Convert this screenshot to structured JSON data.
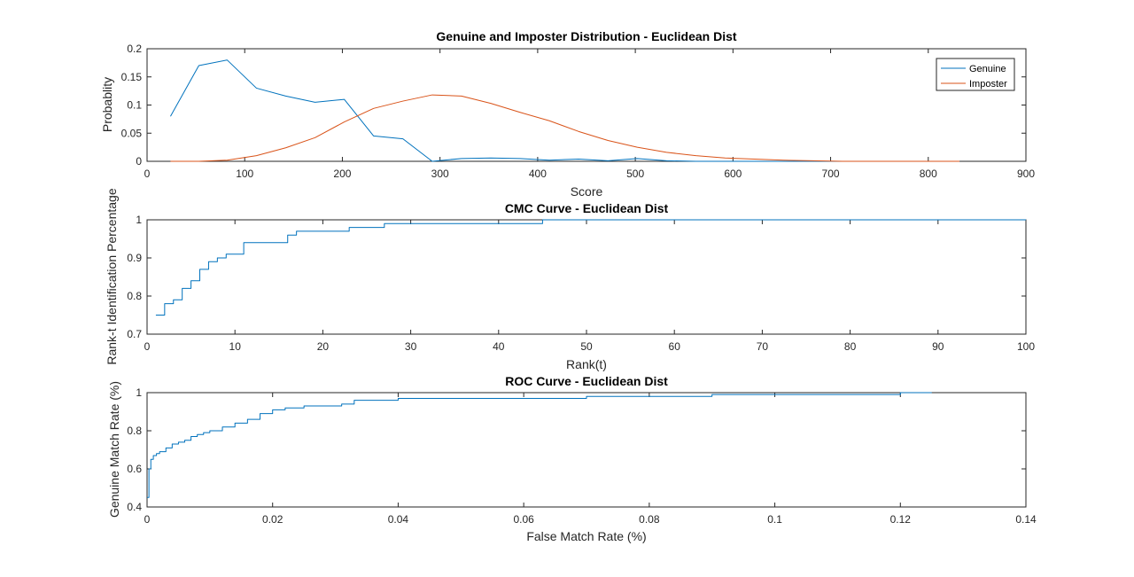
{
  "chart_data": [
    {
      "type": "line",
      "title": "Genuine and Imposter Distribution - Euclidean Dist",
      "xlabel": "Score",
      "ylabel": "Probablity",
      "xlim": [
        0,
        900
      ],
      "ylim": [
        0,
        0.2
      ],
      "xticks": [
        "0",
        "100",
        "200",
        "300",
        "400",
        "500",
        "600",
        "700",
        "800",
        "900"
      ],
      "yticks": [
        "0",
        "0.05",
        "0.1",
        "0.15",
        "0.2"
      ],
      "legend": "top-right",
      "series": [
        {
          "name": "Genuine",
          "color": "#0072BD",
          "x": [
            24,
            53,
            82,
            112,
            142,
            172,
            202,
            232,
            262,
            292,
            322,
            352,
            382,
            412,
            442,
            472,
            502,
            532,
            562,
            592,
            622,
            652,
            682,
            712,
            742,
            772,
            802,
            832
          ],
          "y": [
            0.08,
            0.17,
            0.18,
            0.13,
            0.116,
            0.105,
            0.11,
            0.045,
            0.04,
            0.0,
            0.005,
            0.006,
            0.005,
            0.002,
            0.004,
            0.001,
            0.005,
            0.001,
            0.0,
            0.0,
            0.0,
            0.0,
            0.0,
            0.0,
            0.0,
            0.0,
            0.0,
            0.0
          ]
        },
        {
          "name": "Imposter",
          "color": "#D95319",
          "x": [
            24,
            53,
            82,
            112,
            142,
            172,
            202,
            232,
            262,
            292,
            322,
            352,
            382,
            412,
            442,
            472,
            502,
            532,
            562,
            592,
            622,
            652,
            682,
            712,
            742,
            772,
            802,
            832
          ],
          "y": [
            0.0,
            0.0,
            0.002,
            0.01,
            0.024,
            0.042,
            0.07,
            0.094,
            0.107,
            0.118,
            0.116,
            0.103,
            0.087,
            0.072,
            0.053,
            0.037,
            0.025,
            0.016,
            0.01,
            0.006,
            0.004,
            0.002,
            0.001,
            0.0,
            0.0,
            0.0,
            0.0,
            0.0
          ]
        }
      ]
    },
    {
      "type": "line",
      "title": "CMC Curve - Euclidean Dist",
      "xlabel": "Rank(t)",
      "ylabel": "Rank-t Identification Percentage",
      "xlim": [
        0,
        100
      ],
      "ylim": [
        0.7,
        1
      ],
      "xticks": [
        "0",
        "10",
        "20",
        "30",
        "40",
        "50",
        "60",
        "70",
        "80",
        "90",
        "100"
      ],
      "yticks": [
        "0.7",
        "0.8",
        "0.9",
        "1"
      ],
      "series": [
        {
          "color": "#0072BD",
          "x": [
            1,
            2,
            3,
            4,
            5,
            6,
            7,
            8,
            9,
            10,
            11,
            12,
            13,
            14,
            15,
            16,
            17,
            18,
            19,
            20,
            21,
            22,
            23,
            24,
            25,
            26,
            27,
            28,
            30,
            35,
            40,
            44,
            45,
            50,
            60,
            70,
            80,
            90,
            100
          ],
          "y": [
            0.75,
            0.78,
            0.79,
            0.82,
            0.84,
            0.87,
            0.89,
            0.9,
            0.91,
            0.91,
            0.94,
            0.94,
            0.94,
            0.94,
            0.94,
            0.96,
            0.97,
            0.97,
            0.97,
            0.97,
            0.97,
            0.97,
            0.98,
            0.98,
            0.98,
            0.98,
            0.99,
            0.99,
            0.99,
            0.99,
            0.99,
            0.99,
            1.0,
            1.0,
            1.0,
            1.0,
            1.0,
            1.0,
            1.0
          ]
        }
      ]
    },
    {
      "type": "line",
      "title": "ROC Curve - Euclidean Dist",
      "xlabel": "False Match Rate (%)",
      "ylabel": "Genuine Match Rate (%)",
      "xlim": [
        0,
        0.14
      ],
      "ylim": [
        0.4,
        1
      ],
      "xticks": [
        "0",
        "0.02",
        "0.04",
        "0.06",
        "0.08",
        "0.1",
        "0.12",
        "0.14"
      ],
      "yticks": [
        "0.4",
        "0.6",
        "0.8",
        "1"
      ],
      "series": [
        {
          "color": "#0072BD",
          "x": [
            0,
            0.0003,
            0.0006,
            0.001,
            0.0015,
            0.002,
            0.003,
            0.004,
            0.005,
            0.006,
            0.007,
            0.008,
            0.009,
            0.01,
            0.012,
            0.014,
            0.016,
            0.018,
            0.02,
            0.022,
            0.025,
            0.028,
            0.031,
            0.033,
            0.036,
            0.04,
            0.05,
            0.06,
            0.07,
            0.08,
            0.09,
            0.1,
            0.11,
            0.118,
            0.12,
            0.125
          ],
          "y": [
            0.45,
            0.6,
            0.65,
            0.67,
            0.68,
            0.69,
            0.71,
            0.73,
            0.74,
            0.75,
            0.77,
            0.78,
            0.79,
            0.8,
            0.82,
            0.84,
            0.86,
            0.89,
            0.91,
            0.92,
            0.93,
            0.93,
            0.94,
            0.96,
            0.96,
            0.97,
            0.97,
            0.97,
            0.98,
            0.98,
            0.99,
            0.99,
            0.99,
            0.99,
            1.0,
            1.0
          ]
        }
      ]
    }
  ]
}
